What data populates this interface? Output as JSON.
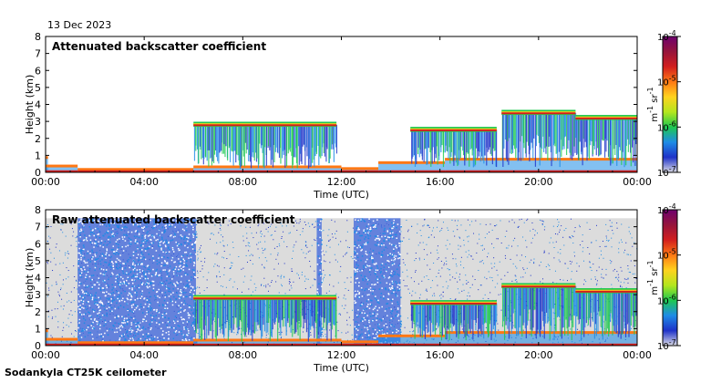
{
  "header": {
    "date": "13 Dec 2023"
  },
  "footer": {
    "instrument": "Sodankyla CT25K ceilometer"
  },
  "colors": {
    "scale": [
      "#dcdce6",
      "#1e32c8",
      "#1e8ce6",
      "#1ec850",
      "#b4e61e",
      "#ffd21e",
      "#ff7814",
      "#d21e1e",
      "#96143c",
      "#6e006e"
    ],
    "raw_background": "#dcdcdc"
  },
  "chart_data": [
    {
      "type": "heatmap",
      "title": "Attenuated backscatter coefficient",
      "xlabel": "Time (UTC)",
      "ylabel": "Height (km)",
      "x_ticks": [
        "00:00",
        "04:00",
        "08:00",
        "12:00",
        "16:00",
        "20:00",
        "00:00"
      ],
      "x_range_hours": [
        0,
        24
      ],
      "y_ticks": [
        "0",
        "1",
        "2",
        "3",
        "4",
        "5",
        "6",
        "7",
        "8"
      ],
      "ylim": [
        0,
        8
      ],
      "colorbar": {
        "label": "m",
        "label_exp1": "-1",
        "label_mid": " sr",
        "label_exp2": "-1",
        "ticks": [
          {
            "base": "10",
            "exp": "-4"
          },
          {
            "base": "10",
            "exp": "-5"
          },
          {
            "base": "10",
            "exp": "-6"
          },
          {
            "base": "10",
            "exp": "-7"
          }
        ],
        "range": [
          1e-07,
          0.0001
        ],
        "scale": "log"
      },
      "layers": [
        {
          "name": "surface layer",
          "segments": [
            [
              0,
              0.1,
              0.9
            ],
            [
              0,
              1.3,
              0.4
            ],
            [
              1.3,
              6,
              0.2
            ],
            [
              6,
              12,
              0.35
            ],
            [
              12,
              13.5,
              0.25
            ],
            [
              13.5,
              16.2,
              0.6
            ],
            [
              16.2,
              24,
              0.8
            ]
          ],
          "bottom": 0,
          "intensity": "high"
        },
        {
          "name": "mid cloud",
          "segments": [
            [
              6,
              11.8,
              2.8
            ]
          ],
          "thickness_km": 0.3,
          "fallstreak_to_km": 0.2,
          "intensity": "high"
        },
        {
          "name": "cloud layer",
          "segments": [
            [
              14.8,
              18.3,
              2.5
            ],
            [
              18.5,
              21.5,
              3.5
            ],
            [
              21.5,
              24,
              3.2
            ]
          ],
          "thickness_km": 0.3,
          "fallstreak_to_km": 0.3,
          "intensity": "high"
        }
      ]
    },
    {
      "type": "heatmap",
      "title": "Raw attenuated backscatter coefficient",
      "xlabel": "Time (UTC)",
      "ylabel": "Height (km)",
      "x_ticks": [
        "00:00",
        "04:00",
        "08:00",
        "12:00",
        "16:00",
        "20:00",
        "00:00"
      ],
      "x_range_hours": [
        0,
        24
      ],
      "y_ticks": [
        "0",
        "1",
        "2",
        "3",
        "4",
        "5",
        "6",
        "7",
        "8"
      ],
      "ylim": [
        0,
        8
      ],
      "colorbar": {
        "label": "m",
        "label_exp1": "-1",
        "label_mid": " sr",
        "label_exp2": "-1",
        "ticks": [
          {
            "base": "10",
            "exp": "-4"
          },
          {
            "base": "10",
            "exp": "-5"
          },
          {
            "base": "10",
            "exp": "-6"
          },
          {
            "base": "10",
            "exp": "-7"
          }
        ],
        "range": [
          1e-07,
          0.0001
        ],
        "scale": "log"
      },
      "noise_blocks_hours": [
        [
          1.3,
          6.1
        ],
        [
          11.0,
          11.2
        ],
        [
          12.5,
          14.4
        ]
      ],
      "noise_top_km": 7.5,
      "layers": [
        {
          "name": "surface layer",
          "segments": [
            [
              0,
              0.1,
              0.9
            ],
            [
              0,
              1.3,
              0.4
            ],
            [
              1.3,
              6,
              0.2
            ],
            [
              6,
              12,
              0.35
            ],
            [
              12,
              13.5,
              0.25
            ],
            [
              13.5,
              16.2,
              0.6
            ],
            [
              16.2,
              24,
              0.8
            ]
          ],
          "bottom": 0,
          "intensity": "high"
        },
        {
          "name": "mid cloud",
          "segments": [
            [
              6,
              11.8,
              2.8
            ]
          ],
          "thickness_km": 0.3,
          "fallstreak_to_km": 0.2,
          "intensity": "high"
        },
        {
          "name": "cloud layer",
          "segments": [
            [
              14.8,
              18.3,
              2.5
            ],
            [
              18.5,
              21.5,
              3.5
            ],
            [
              21.5,
              24,
              3.2
            ]
          ],
          "thickness_km": 0.3,
          "fallstreak_to_km": 0.3,
          "intensity": "high"
        }
      ]
    }
  ]
}
